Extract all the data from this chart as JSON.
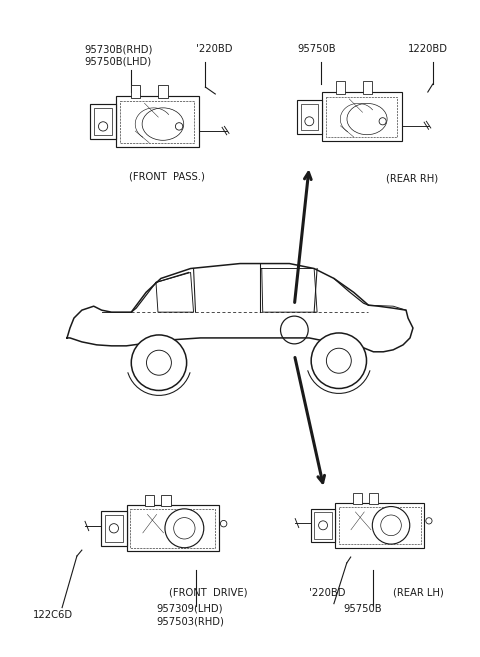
{
  "bg_color": "#ffffff",
  "line_color": "#1a1a1a",
  "text_color": "#1a1a1a",
  "fig_width": 4.8,
  "fig_height": 6.57,
  "dpi": 100,
  "labels": {
    "front_pass_line1": "95730B(RHD)",
    "front_pass_line2": "95750B(LHD)",
    "front_pass_connector": "'220BD",
    "front_pass_caption": "(FRONT  PASS.)",
    "rear_rh_part": "95750B",
    "rear_rh_connector": "1220BD",
    "rear_rh_caption": "(REAR RH)",
    "front_drive_connector": "122C6D",
    "front_drive_line1": "957309(LHD)",
    "front_drive_line2": "957503(RHD)",
    "front_drive_caption": "(FRONT  DRIVE)",
    "rear_lh_connector2": "'220BD",
    "rear_lh_part": "95750B",
    "rear_lh_caption": "(REAR LH)"
  }
}
